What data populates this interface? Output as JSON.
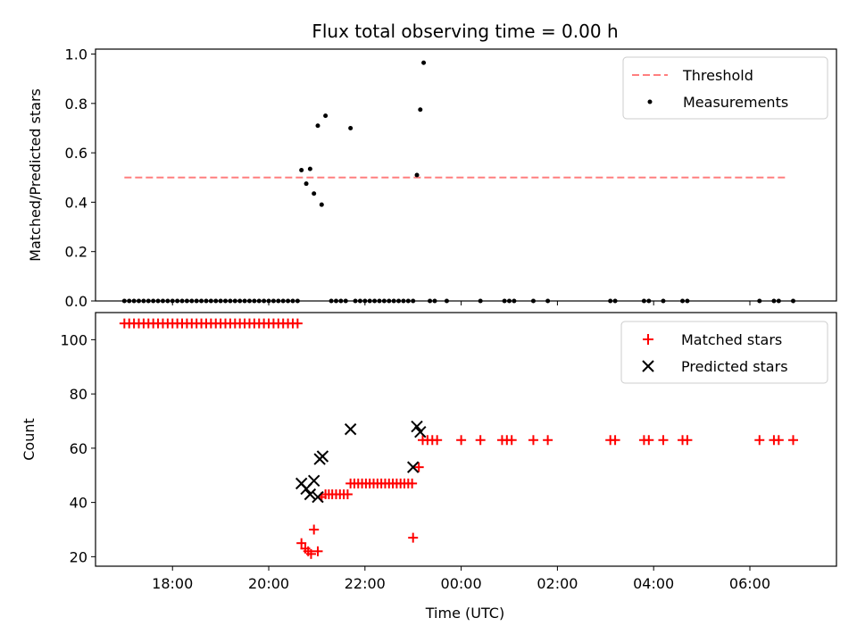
{
  "chart_data": [
    {
      "type": "scatter",
      "title": "Flux total observing time = 0.00 h",
      "xlabel": "",
      "ylabel": "Matched/Predicted stars",
      "xlim": [
        16.4,
        31.8
      ],
      "ylim": [
        0,
        1.02
      ],
      "yticks": [
        0.0,
        0.2,
        0.4,
        0.6,
        0.8,
        1.0
      ],
      "ytick_labels": [
        "0.0",
        "0.2",
        "0.4",
        "0.6",
        "0.8",
        "1.0"
      ],
      "legend_position": "upper right",
      "legend": [
        "Threshold",
        "Measurements"
      ],
      "threshold": {
        "name": "Threshold",
        "color": "#ff7f7f",
        "style": "dashed",
        "x": [
          17.0,
          30.8
        ],
        "y": 0.5
      },
      "series": [
        {
          "name": "Measurements",
          "color": "#000000",
          "marker": "dot",
          "x": [
            17.0,
            17.1,
            17.2,
            17.3,
            17.4,
            17.5,
            17.6,
            17.7,
            17.8,
            17.9,
            18.0,
            18.1,
            18.2,
            18.3,
            18.4,
            18.5,
            18.6,
            18.7,
            18.8,
            18.9,
            19.0,
            19.1,
            19.2,
            19.3,
            19.4,
            19.5,
            19.6,
            19.7,
            19.8,
            19.9,
            20.0,
            20.1,
            20.2,
            20.3,
            20.4,
            20.5,
            20.6,
            20.68,
            20.78,
            20.86,
            20.94,
            21.02,
            21.1,
            21.18,
            21.3,
            21.4,
            21.5,
            21.6,
            21.7,
            21.8,
            21.9,
            22.0,
            22.1,
            22.2,
            22.3,
            22.4,
            22.5,
            22.6,
            22.7,
            22.8,
            22.9,
            23.0,
            23.08,
            23.15,
            23.22,
            23.35,
            23.45,
            23.7,
            24.4,
            24.9,
            25.0,
            25.1,
            25.5,
            25.8,
            27.1,
            27.2,
            27.8,
            27.9,
            28.2,
            28.6,
            28.7,
            30.2,
            30.5,
            30.6,
            30.9
          ],
          "y": [
            0,
            0,
            0,
            0,
            0,
            0,
            0,
            0,
            0,
            0,
            0,
            0,
            0,
            0,
            0,
            0,
            0,
            0,
            0,
            0,
            0,
            0,
            0,
            0,
            0,
            0,
            0,
            0,
            0,
            0,
            0,
            0,
            0,
            0,
            0,
            0,
            0,
            0.53,
            0.475,
            0.535,
            0.435,
            0.71,
            0.39,
            0.75,
            0,
            0,
            0,
            0,
            0.7,
            0,
            0,
            0,
            0,
            0,
            0,
            0,
            0,
            0,
            0,
            0,
            0,
            0,
            0.51,
            0.775,
            0.965,
            0,
            0,
            0,
            0,
            0,
            0,
            0,
            0,
            0,
            0,
            0,
            0,
            0,
            0,
            0,
            0,
            0,
            0,
            0,
            0
          ]
        }
      ]
    },
    {
      "type": "scatter",
      "title": "",
      "xlabel": "Time (UTC)",
      "ylabel": "Count",
      "xlim": [
        16.4,
        31.8
      ],
      "ylim": [
        16.5,
        110
      ],
      "yticks": [
        20,
        40,
        60,
        80,
        100
      ],
      "ytick_labels": [
        "20",
        "40",
        "60",
        "80",
        "100"
      ],
      "xticks": [
        18,
        20,
        22,
        24,
        26,
        28,
        30
      ],
      "xtick_labels": [
        "18:00",
        "20:00",
        "22:00",
        "00:00",
        "02:00",
        "04:00",
        "06:00"
      ],
      "legend_position": "upper right",
      "legend": [
        "Matched stars",
        "Predicted stars"
      ],
      "series": [
        {
          "name": "Matched stars",
          "color": "#ff0000",
          "marker": "plus",
          "x": [
            17.0,
            17.1,
            17.2,
            17.3,
            17.4,
            17.5,
            17.6,
            17.7,
            17.8,
            17.9,
            18.0,
            18.1,
            18.2,
            18.3,
            18.4,
            18.5,
            18.6,
            18.7,
            18.8,
            18.9,
            19.0,
            19.1,
            19.2,
            19.3,
            19.4,
            19.5,
            19.6,
            19.7,
            19.8,
            19.9,
            20.0,
            20.1,
            20.2,
            20.3,
            20.4,
            20.5,
            20.6,
            20.68,
            20.76,
            20.82,
            20.88,
            20.94,
            21.02,
            21.1,
            21.18,
            21.25,
            21.32,
            21.4,
            21.48,
            21.56,
            21.64,
            21.7,
            21.78,
            21.86,
            21.94,
            22.02,
            22.1,
            22.18,
            22.26,
            22.34,
            22.42,
            22.5,
            22.58,
            22.66,
            22.74,
            22.82,
            22.9,
            22.98,
            23.0,
            23.12,
            23.2,
            23.3,
            23.4,
            23.5,
            24.0,
            24.4,
            24.85,
            24.95,
            25.05,
            25.5,
            25.8,
            27.1,
            27.2,
            27.8,
            27.9,
            28.2,
            28.6,
            28.7,
            30.2,
            30.5,
            30.6,
            30.9
          ],
          "y": [
            106,
            106,
            106,
            106,
            106,
            106,
            106,
            106,
            106,
            106,
            106,
            106,
            106,
            106,
            106,
            106,
            106,
            106,
            106,
            106,
            106,
            106,
            106,
            106,
            106,
            106,
            106,
            106,
            106,
            106,
            106,
            106,
            106,
            106,
            106,
            106,
            106,
            25,
            23,
            22,
            21,
            30,
            22,
            42,
            43,
            43,
            43,
            43,
            43,
            43,
            43,
            47,
            47,
            47,
            47,
            47,
            47,
            47,
            47,
            47,
            47,
            47,
            47,
            47,
            47,
            47,
            47,
            47,
            27,
            53,
            63,
            63,
            63,
            63,
            63,
            63,
            63,
            63,
            63,
            63,
            63,
            63,
            63,
            63,
            63,
            63,
            63,
            63,
            63,
            63,
            63,
            63
          ]
        },
        {
          "name": "Predicted stars",
          "color": "#000000",
          "marker": "x",
          "x": [
            20.68,
            20.78,
            20.86,
            20.94,
            21.02,
            21.06,
            21.12,
            21.7,
            23.0,
            23.08,
            23.15
          ],
          "y": [
            47,
            45,
            43,
            48,
            42,
            56,
            57,
            67,
            53,
            68,
            66
          ]
        }
      ]
    }
  ]
}
